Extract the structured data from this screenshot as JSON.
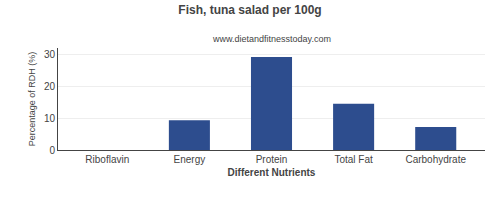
{
  "chart_data": {
    "type": "bar",
    "title": "Fish, tuna salad per 100g",
    "subtitle": "www.dietandfitnesstoday.com",
    "xlabel": "Different Nutrients",
    "ylabel": "Percentage of RDH (%)",
    "categories": [
      "Riboflavin",
      "Energy",
      "Protein",
      "Total Fat",
      "Carbohydrate"
    ],
    "values": [
      0,
      9.3,
      29.2,
      14.5,
      7.2
    ],
    "color": "#2d4d8e",
    "ylim": [
      0,
      32
    ],
    "yticks": [
      0,
      10,
      20,
      30
    ],
    "grid": true
  }
}
